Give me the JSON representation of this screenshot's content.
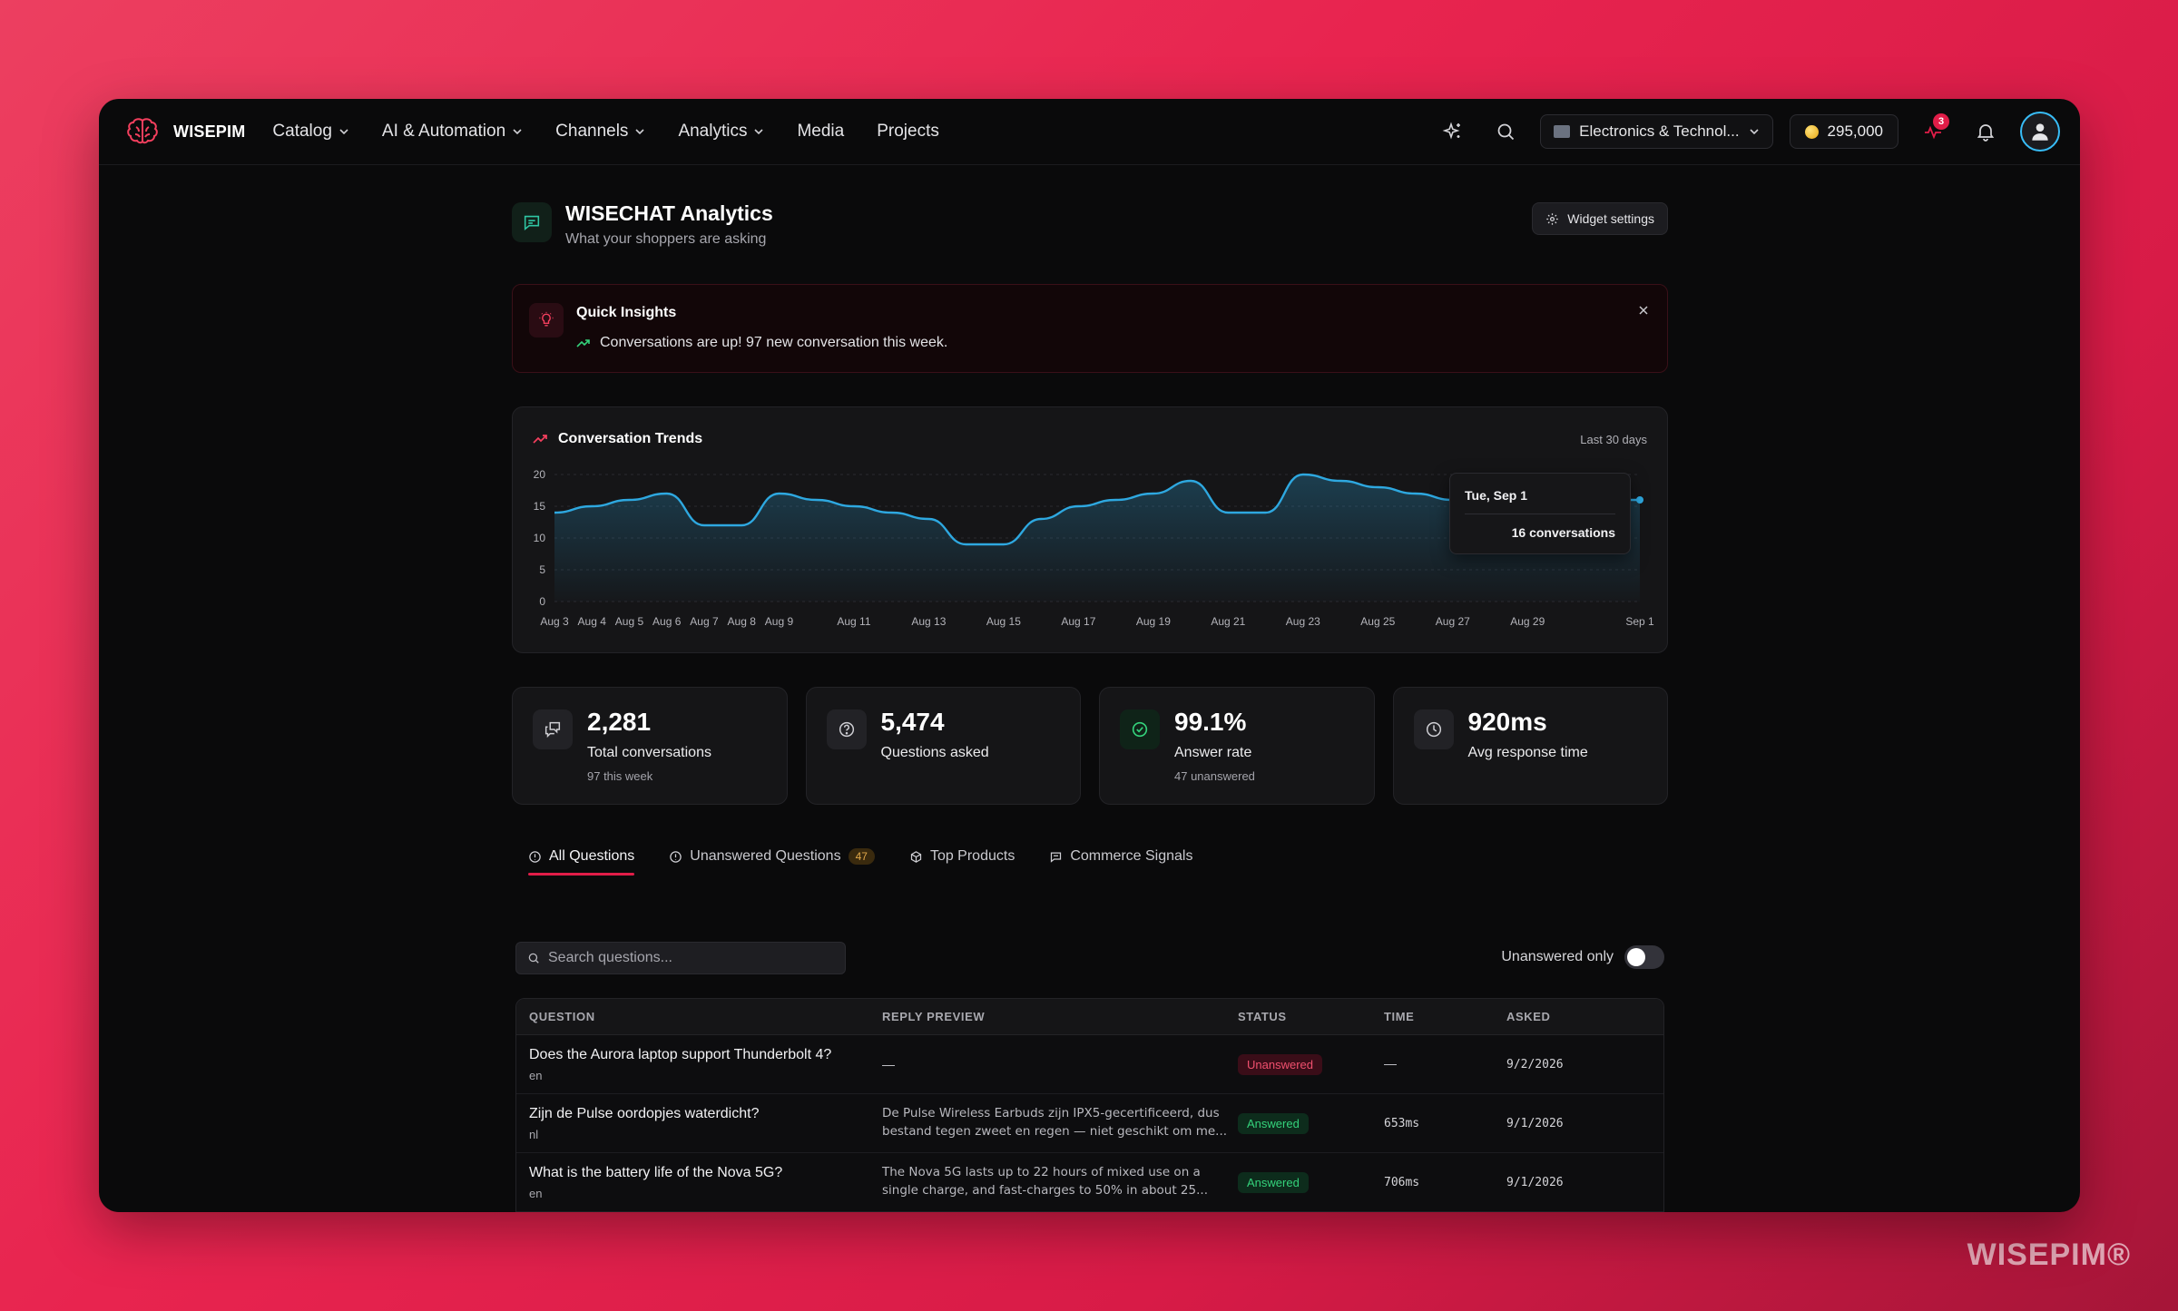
{
  "brand": {
    "name": "WISEPIM",
    "watermark": "WISEPIM®"
  },
  "nav": {
    "items": [
      {
        "label": "Catalog",
        "dropdown": true
      },
      {
        "label": "AI & Automation",
        "dropdown": true
      },
      {
        "label": "Channels",
        "dropdown": true
      },
      {
        "label": "Analytics",
        "dropdown": true
      },
      {
        "label": "Media",
        "dropdown": false
      },
      {
        "label": "Projects",
        "dropdown": false
      }
    ],
    "category_select": "Electronics & Technol...",
    "credits": "295,000",
    "activity_count": "3"
  },
  "page": {
    "title": "WISECHAT Analytics",
    "subtitle": "What your shoppers are asking",
    "widget_settings": "Widget settings"
  },
  "insights": {
    "title": "Quick Insights",
    "text": "Conversations are up! 97 new conversation this week."
  },
  "chart_data": {
    "type": "area",
    "title": "Conversation Trends",
    "range_label": "Last 30 days",
    "ylim": [
      0,
      20
    ],
    "y_ticks": [
      "0",
      "5",
      "10",
      "15",
      "20"
    ],
    "x_labels": [
      "Aug 3",
      "Aug 4",
      "Aug 5",
      "Aug 6",
      "Aug 7",
      "Aug 8",
      "Aug 9",
      "Aug 11",
      "Aug 13",
      "Aug 15",
      "Aug 17",
      "Aug 19",
      "Aug 21",
      "Aug 23",
      "Aug 25",
      "Aug 27",
      "Aug 29",
      "Sep 1"
    ],
    "series": [
      {
        "x": [
          "Aug 3",
          "Aug 4",
          "Aug 5",
          "Aug 6",
          "Aug 7",
          "Aug 8",
          "Aug 9",
          "Aug 10",
          "Aug 11",
          "Aug 12",
          "Aug 13",
          "Aug 14",
          "Aug 15",
          "Aug 16",
          "Aug 17",
          "Aug 18",
          "Aug 19",
          "Aug 20",
          "Aug 21",
          "Aug 22",
          "Aug 23",
          "Aug 24",
          "Aug 25",
          "Aug 26",
          "Aug 27",
          "Aug 28",
          "Aug 29",
          "Aug 30",
          "Aug 31",
          "Sep 1"
        ],
        "values": [
          14,
          15,
          16,
          17,
          12,
          12,
          17,
          16,
          15,
          14,
          13,
          9,
          9,
          13,
          15,
          16,
          17,
          19,
          14,
          14,
          20,
          19,
          18,
          17,
          16,
          15,
          14,
          16,
          16,
          16
        ]
      }
    ],
    "tooltip": {
      "date": "Tue, Sep 1",
      "value": "16 conversations"
    },
    "grid": true,
    "color": "#2ea8e0"
  },
  "stats": [
    {
      "value": "2,281",
      "label": "Total conversations",
      "sub": "97 this week",
      "icon": "chat-bubbles-icon"
    },
    {
      "value": "5,474",
      "label": "Questions asked",
      "sub": "",
      "icon": "question-circle-icon"
    },
    {
      "value": "99.1%",
      "label": "Answer rate",
      "sub": "47 unanswered",
      "icon": "check-circle-icon"
    },
    {
      "value": "920ms",
      "label": "Avg response time",
      "sub": "",
      "icon": "clock-icon"
    }
  ],
  "tabs": [
    {
      "label": "All Questions",
      "active": true
    },
    {
      "label": "Unanswered Questions",
      "count": "47"
    },
    {
      "label": "Top Products"
    },
    {
      "label": "Commerce Signals"
    }
  ],
  "search": {
    "placeholder": "Search questions..."
  },
  "filter": {
    "label": "Unanswered only",
    "on": false
  },
  "table": {
    "headers": [
      "QUESTION",
      "REPLY PREVIEW",
      "STATUS",
      "TIME",
      "ASKED"
    ],
    "rows": [
      {
        "question": "Does the Aurora laptop support Thunderbolt 4?",
        "lang": "en",
        "preview": "—",
        "status": "Unanswered",
        "time": "—",
        "asked": "9/2/2026"
      },
      {
        "question": "Zijn de Pulse oordopjes waterdicht?",
        "lang": "nl",
        "preview": "De Pulse Wireless Earbuds zijn IPX5-gecertificeerd, dus bestand tegen zweet en regen — niet geschikt om me...",
        "status": "Answered",
        "time": "653ms",
        "asked": "9/1/2026"
      },
      {
        "question": "What is the battery life of the Nova 5G?",
        "lang": "en",
        "preview": "The Nova 5G lasts up to 22 hours of mixed use on a single charge, and fast-charges to 50% in about 25...",
        "status": "Answered",
        "time": "706ms",
        "asked": "9/1/2026"
      }
    ]
  }
}
